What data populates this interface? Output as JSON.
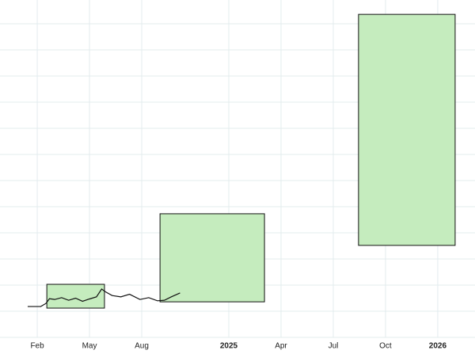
{
  "chart_data": {
    "type": "boxes",
    "xlim": [
      -1.14,
      26.14
    ],
    "ylim": [
      -1,
      11.91
    ],
    "xticks": [
      {
        "value": 1,
        "label": "Feb"
      },
      {
        "value": 4,
        "label": "May"
      },
      {
        "value": 7,
        "label": "Aug"
      },
      {
        "value": 12,
        "label": "2025"
      },
      {
        "value": 15,
        "label": "Apr"
      },
      {
        "value": 18,
        "label": "Jul"
      },
      {
        "value": 21,
        "label": "Oct"
      },
      {
        "value": 24,
        "label": "2026"
      }
    ],
    "yticks": [
      -1,
      0,
      1,
      2,
      3,
      4,
      5,
      6,
      7,
      8,
      9,
      10,
      11
    ],
    "grid": true,
    "line": {
      "color": "#111111",
      "x": [
        0.45,
        1.2,
        1.5,
        1.7,
        2.0,
        2.4,
        2.8,
        3.2,
        3.6,
        4.0,
        4.4,
        4.7,
        4.9,
        5.3,
        5.8,
        6.3,
        6.9,
        7.4,
        7.9,
        8.3,
        8.7,
        9.2
      ],
      "values": [
        0.18,
        0.18,
        0.3,
        0.48,
        0.45,
        0.52,
        0.42,
        0.5,
        0.38,
        0.47,
        0.55,
        0.85,
        0.75,
        0.6,
        0.55,
        0.65,
        0.45,
        0.52,
        0.4,
        0.42,
        0.55,
        0.7
      ]
    },
    "boxes": {
      "color": "#c5ecbe",
      "edge": "#111111",
      "x0": [
        1.55,
        8.05,
        19.45
      ],
      "x1": [
        4.86,
        14.05,
        25.0
      ],
      "y0": [
        0.12,
        0.36,
        2.52
      ],
      "y1": [
        1.03,
        3.73,
        11.36
      ]
    }
  }
}
